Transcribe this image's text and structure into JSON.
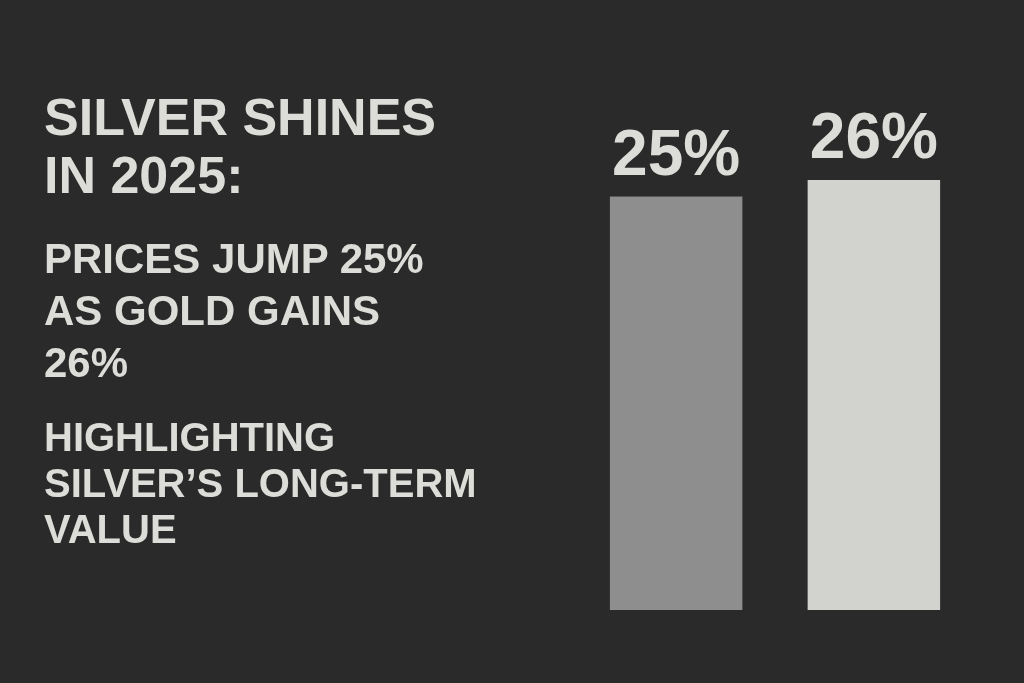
{
  "chart_data": {
    "type": "bar",
    "title": "SILVER SHINES IN 2025:",
    "subtitle": "PRICES JUMP 25% AS GOLD GAINS 26%",
    "annotations": [
      "HIGHLIGHTING SILVER’S LONG-TERM VALUE"
    ],
    "categories": [
      null,
      null
    ],
    "values": [
      25,
      26
    ],
    "colors": [
      "#8e8e8e",
      "#d2d2ce"
    ],
    "value_labels": [
      "25%",
      "26%"
    ]
  }
}
